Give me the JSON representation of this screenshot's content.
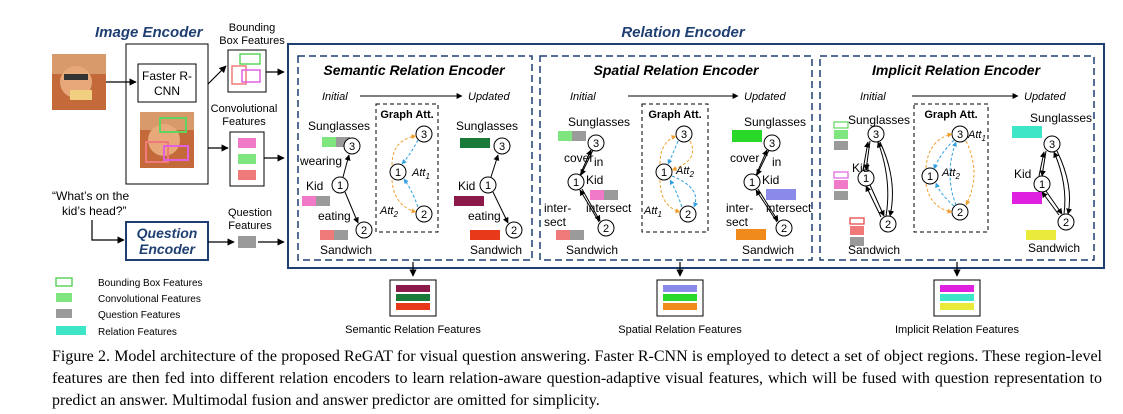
{
  "image_encoder": {
    "title": "Image Encoder",
    "detector": [
      "Faster R-",
      "CNN"
    ],
    "bbox_features": [
      "Bounding",
      "Box Features"
    ],
    "conv_features": [
      "Convolutional",
      "Features"
    ]
  },
  "question": {
    "text": [
      "“What’s on the",
      "kid’s head?”"
    ],
    "encoder": [
      "Question",
      "Encoder"
    ],
    "features": [
      "Question",
      "Features"
    ]
  },
  "legend": [
    {
      "label": "Bounding Box Features",
      "color": "#5fd45f"
    },
    {
      "label": "Convolutional  Features",
      "color": "#7fe67f"
    },
    {
      "label": "Question  Features",
      "color": "#9a9a9a"
    },
    {
      "label": "Relation  Features",
      "color": "#3ee6c8"
    }
  ],
  "relation_encoder": {
    "title": "Relation Encoder",
    "initial": "Initial",
    "updated": "Updated",
    "graph_att": "Graph Att.",
    "semantic": {
      "title": "Semantic  Relation Encoder",
      "output": "Semantic Relation Features",
      "labels": {
        "sunglasses": "Sunglasses",
        "kid": "Kid",
        "sandwich": "Sandwich",
        "wearing": "wearing",
        "eating": "eating"
      }
    },
    "spatial": {
      "title": "Spatial  Relation Encoder",
      "output": "Spatial Relation Features",
      "labels": {
        "sunglasses": "Sunglasses",
        "kid": "Kid",
        "sandwich": "Sandwich",
        "cover": "cover",
        "in": "in",
        "intersect": "intersect",
        "inter": "inter-",
        "sect": "sect"
      }
    },
    "implicit": {
      "title": "Implicit  Relation Encoder",
      "output": "Implicit Relation Features",
      "labels": {
        "sunglasses": "Sunglasses",
        "kid": "Kid",
        "sandwich": "Sandwich"
      }
    },
    "att": {
      "att1": "Att",
      "att1_sub": "1",
      "att2": "Att",
      "att2_sub": "2"
    },
    "nodes": {
      "n1": "1",
      "n2": "2",
      "n3": "3"
    }
  },
  "colors": {
    "dark_blue": "#1f3f73",
    "semantic": [
      "#8b1a4a",
      "#1a7a3a",
      "#e83a1a"
    ],
    "spatial": [
      "#8a8ae8",
      "#2ad82a",
      "#f08a1a"
    ],
    "implicit": [
      "#e020e0",
      "#3ee6c8",
      "#eaea3a"
    ],
    "pink": "#f07ac8",
    "gray": "#9a9a9a",
    "green": "#7fe67f",
    "red": "#f07a7a"
  },
  "caption": "Figure 2. Model architecture of the proposed ReGAT for visual question answering. Faster R-CNN is employed to detect a set of object regions. These region-level features are then fed into different relation encoders to learn relation-aware question-adaptive visual features, which will be fused with question representation to predict an answer. Multimodal fusion and answer predictor are omitted for simplicity."
}
